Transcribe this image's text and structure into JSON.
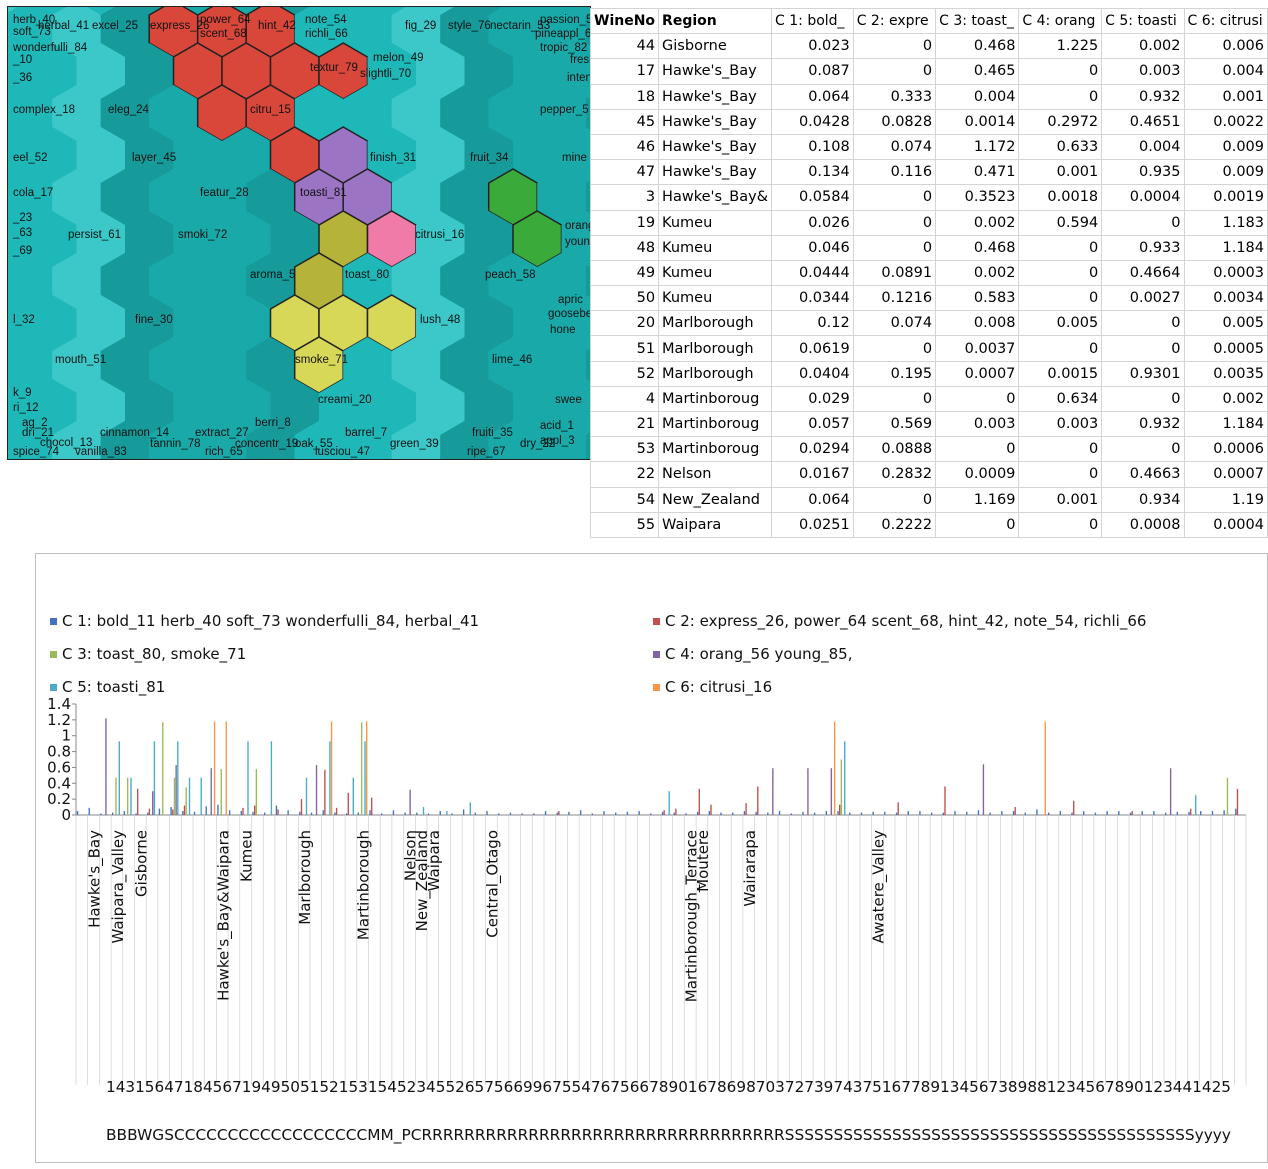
{
  "som": {
    "labels": [
      {
        "text": "herb_40",
        "hex": "herb"
      },
      {
        "text": "soft_73"
      },
      {
        "text": "wonderfulli_84"
      },
      {
        "text": "_10"
      },
      {
        "text": "_36"
      },
      {
        "text": "herbal_41"
      },
      {
        "text": "excel_25"
      },
      {
        "text": "express_26"
      },
      {
        "text": "power_64"
      },
      {
        "text": "scent_68"
      },
      {
        "text": "hint_42"
      },
      {
        "text": "note_54"
      },
      {
        "text": "richli_66"
      },
      {
        "text": "fig_29"
      },
      {
        "text": "style_76"
      },
      {
        "text": "nectarin_53"
      },
      {
        "text": "passion_5"
      },
      {
        "text": "pineappl_6"
      },
      {
        "text": "tropic_82"
      },
      {
        "text": "fresh"
      },
      {
        "text": "intens"
      },
      {
        "text": "melon_49"
      },
      {
        "text": "slightli_70"
      },
      {
        "text": "textur_79"
      },
      {
        "text": "complex_18"
      },
      {
        "text": "eleg_24"
      },
      {
        "text": "citru_15"
      },
      {
        "text": "pepper_5"
      },
      {
        "text": "eel_52"
      },
      {
        "text": "layer_45"
      },
      {
        "text": "finish_31"
      },
      {
        "text": "fruit_34"
      },
      {
        "text": "mine"
      },
      {
        "text": "cola_17"
      },
      {
        "text": "featur_28"
      },
      {
        "text": "toasti_81"
      },
      {
        "text": "_23"
      },
      {
        "text": "_63"
      },
      {
        "text": "_69"
      },
      {
        "text": "persist_61"
      },
      {
        "text": "smoki_72"
      },
      {
        "text": "citrusi_16"
      },
      {
        "text": "orang"
      },
      {
        "text": "youn"
      },
      {
        "text": "aroma_5"
      },
      {
        "text": "toast_80"
      },
      {
        "text": "peach_58"
      },
      {
        "text": "apric"
      },
      {
        "text": "goosebe"
      },
      {
        "text": "hone"
      },
      {
        "text": "l_32"
      },
      {
        "text": "fine_30"
      },
      {
        "text": "lush_48"
      },
      {
        "text": "mouth_51"
      },
      {
        "text": "smoke_71"
      },
      {
        "text": "lime_46"
      },
      {
        "text": "creami_20"
      },
      {
        "text": "k_9"
      },
      {
        "text": "ri_12"
      },
      {
        "text": "ag_2"
      },
      {
        "text": "swee"
      },
      {
        "text": "dri_21"
      },
      {
        "text": "chocol_13"
      },
      {
        "text": "cinnamon_14"
      },
      {
        "text": "extract_27"
      },
      {
        "text": "berri_8"
      },
      {
        "text": "spice_74"
      },
      {
        "text": "vanilla_83"
      },
      {
        "text": "tannin_78"
      },
      {
        "text": "rich_65"
      },
      {
        "text": "concentr_19"
      },
      {
        "text": "oak_55"
      },
      {
        "text": "barrel_7"
      },
      {
        "text": "lusciou_47"
      },
      {
        "text": "green_39"
      },
      {
        "text": "fruiti_35"
      },
      {
        "text": "ripe_67"
      },
      {
        "text": "dry_22"
      },
      {
        "text": "acid_1"
      },
      {
        "text": "appl_3"
      }
    ],
    "colors": {
      "base": "#1fb8b8",
      "dark": "#169a9a",
      "mid": "#1aa9a9",
      "light": "#3cc8c8",
      "red": "#d9473b",
      "purple": "#9b74c4",
      "olive": "#b5b33a",
      "pink": "#f07aa8",
      "green": "#3aaa3a",
      "yellow": "#d8d858"
    }
  },
  "table": {
    "headers": [
      "WineNo",
      "Region",
      "C 1: bold_",
      "C 2: expre",
      "C 3: toast_",
      "C 4: orang",
      "C 5: toasti",
      "C 6: citrusi"
    ],
    "rows": [
      [
        "44",
        "Gisborne",
        "0.023",
        "0",
        "0.468",
        "1.225",
        "0.002",
        "0.006"
      ],
      [
        "17",
        "Hawke's_Bay",
        "0.087",
        "0",
        "0.465",
        "0",
        "0.003",
        "0.004"
      ],
      [
        "18",
        "Hawke's_Bay",
        "0.064",
        "0.333",
        "0.004",
        "0",
        "0.932",
        "0.001"
      ],
      [
        "45",
        "Hawke's_Bay",
        "0.0428",
        "0.0828",
        "0.0014",
        "0.2972",
        "0.4651",
        "0.0022"
      ],
      [
        "46",
        "Hawke's_Bay",
        "0.108",
        "0.074",
        "1.172",
        "0.633",
        "0.004",
        "0.009"
      ],
      [
        "47",
        "Hawke's_Bay",
        "0.134",
        "0.116",
        "0.471",
        "0.001",
        "0.935",
        "0.009"
      ],
      [
        "3",
        "Hawke's_Bay&",
        "0.0584",
        "0",
        "0.3523",
        "0.0018",
        "0.0004",
        "0.0019"
      ],
      [
        "19",
        "Kumeu",
        "0.026",
        "0",
        "0.002",
        "0.594",
        "0",
        "1.183"
      ],
      [
        "48",
        "Kumeu",
        "0.046",
        "0",
        "0.468",
        "0",
        "0.933",
        "1.184"
      ],
      [
        "49",
        "Kumeu",
        "0.0444",
        "0.0891",
        "0.002",
        "0",
        "0.4664",
        "0.0003"
      ],
      [
        "50",
        "Kumeu",
        "0.0344",
        "0.1216",
        "0.583",
        "0",
        "0.0027",
        "0.0034"
      ],
      [
        "20",
        "Marlborough",
        "0.12",
        "0.074",
        "0.008",
        "0.005",
        "0",
        "0.005"
      ],
      [
        "51",
        "Marlborough",
        "0.0619",
        "0",
        "0.0037",
        "0",
        "0",
        "0.0005"
      ],
      [
        "52",
        "Marlborough",
        "0.0404",
        "0.195",
        "0.0007",
        "0.0015",
        "0.9301",
        "0.0035"
      ],
      [
        "4",
        "Martinboroug",
        "0.029",
        "0",
        "0",
        "0.634",
        "0",
        "0.002"
      ],
      [
        "21",
        "Martinboroug",
        "0.057",
        "0.569",
        "0.003",
        "0.003",
        "0.932",
        "1.184"
      ],
      [
        "53",
        "Martinboroug",
        "0.0294",
        "0.0888",
        "0",
        "0",
        "0",
        "0.0006"
      ],
      [
        "22",
        "Nelson",
        "0.0167",
        "0.2832",
        "0.0009",
        "0",
        "0.4663",
        "0.0007"
      ],
      [
        "54",
        "New_Zealand",
        "0.064",
        "0",
        "1.169",
        "0.001",
        "0.934",
        "1.19"
      ],
      [
        "55",
        "Waipara",
        "0.0251",
        "0.2222",
        "0",
        "0",
        "0.0008",
        "0.0004"
      ]
    ]
  },
  "chart_data": {
    "type": "bar",
    "ylim": [
      0,
      1.4
    ],
    "yticks": [
      "0",
      "0.2",
      "0.4",
      "0.6",
      "0.8",
      "1",
      "1.2",
      "1.4"
    ],
    "legend": [
      {
        "name": "C 1: bold_11  herb_40  soft_73  wonderfulli_84, herbal_41",
        "color": "#4472c4"
      },
      {
        "name": "C 2: express_26, power_64  scent_68, hint_42, note_54, richli_66",
        "color": "#c0504d"
      },
      {
        "name": "C 3: toast_80, smoke_71",
        "color": "#9bbb59"
      },
      {
        "name": "C 4: orang_56  young_85,",
        "color": "#8064a2"
      },
      {
        "name": "C 5: toasti_81",
        "color": "#4bacc6"
      },
      {
        "name": "C 6: citrusi_16",
        "color": "#f79646"
      }
    ],
    "region_labels": [
      {
        "text": "Hawke's_Bay",
        "i": 1
      },
      {
        "text": "Waipara_Valley",
        "i": 3
      },
      {
        "text": "Gisborne",
        "i": 5
      },
      {
        "text": "Hawke's_Bay&Waipara",
        "i": 12
      },
      {
        "text": "Kumeu",
        "i": 14
      },
      {
        "text": "Marlborough",
        "i": 19
      },
      {
        "text": "Martinborough",
        "i": 24
      },
      {
        "text": "Nelson",
        "i": 28
      },
      {
        "text": "New_Zealand",
        "i": 29
      },
      {
        "text": "Waipara",
        "i": 30
      },
      {
        "text": "Central_Otago",
        "i": 35
      },
      {
        "text": "Martinborough_Terrace",
        "i": 52
      },
      {
        "text": "Moutere",
        "i": 53
      },
      {
        "text": "Wairarapa",
        "i": 57
      },
      {
        "text": "Awatere_Valley",
        "i": 68
      }
    ],
    "wine_no_row": "14315647184567194950515215315452345526575669967554767566789016786987037273974375167789134567389881234567890123441425",
    "code_row": "BBBWGSCCCCCCCCCCCCCCCCCCMM_PCRRRRRRRRRRRRRRRRRRRRRRRRRRRRRRRRRRSSSSSSSSSSSSSSSSSSSSSSSSSSSSSSSSSSSSSSSSSSyyyy",
    "categories_count": 100,
    "series": [
      {
        "name": "C 1",
        "values": [
          0.05,
          0.09,
          0.02,
          0.03,
          0.05,
          0.02,
          0.03,
          0.08,
          0.1,
          0.05,
          0.04,
          0.11,
          0.13,
          0.06,
          0.05,
          0.04,
          0.03,
          0.12,
          0.06,
          0.04,
          0.03,
          0.06,
          0.03,
          0.02,
          0.03,
          0.06,
          0.02,
          0.06,
          0.03,
          0.03,
          0.02,
          0.05,
          0.02,
          0.07,
          0.03,
          0.05,
          0.02,
          0.03,
          0.02,
          0.02,
          0.05,
          0.03,
          0.04,
          0.06,
          0.02,
          0.05,
          0.03,
          0.04,
          0.05,
          0.02,
          0.04,
          0.03,
          0.02,
          0.04,
          0.05,
          0.03,
          0.03,
          0.05,
          0.04,
          0.03,
          0.05,
          0.02,
          0.04,
          0.03,
          0.05,
          0.05,
          0.03,
          0.03,
          0.04,
          0.04,
          0.03,
          0.05,
          0.05,
          0.03,
          0.03,
          0.05,
          0.04,
          0.06,
          0.03,
          0.05,
          0.05,
          0.03,
          0.07,
          0.03,
          0.05,
          0.03,
          0.05,
          0.03,
          0.05,
          0.05,
          0.03,
          0.05,
          0.05,
          0.03,
          0.04,
          0.04,
          0.05,
          0.05,
          0.06,
          0.08
        ]
      },
      {
        "name": "C 2",
        "values": [
          0,
          0,
          0,
          0,
          0,
          0.33,
          0.08,
          0,
          0.07,
          0.12,
          0,
          0,
          0,
          0,
          0.09,
          0.12,
          0,
          0.07,
          0,
          0.2,
          0,
          0.57,
          0.09,
          0.28,
          0,
          0.22,
          0,
          0,
          0,
          0,
          0,
          0,
          0,
          0,
          0,
          0,
          0,
          0,
          0,
          0,
          0,
          0.05,
          0,
          0,
          0,
          0,
          0,
          0,
          0,
          0,
          0.06,
          0.08,
          0,
          0.33,
          0.13,
          0,
          0,
          0.15,
          0.36,
          0,
          0,
          0,
          0,
          0,
          0,
          0.13,
          0,
          0,
          0,
          0,
          0.16,
          0,
          0,
          0,
          0.36,
          0,
          0,
          0,
          0,
          0,
          0.1,
          0,
          0,
          0,
          0,
          0.18,
          0,
          0,
          0,
          0,
          0.05,
          0,
          0,
          0,
          0,
          0.08,
          0,
          0,
          0,
          0.33
        ]
      },
      {
        "name": "C 3",
        "values": [
          0,
          0,
          0,
          0.47,
          0.47,
          0,
          0,
          1.17,
          0.47,
          0.35,
          0,
          0,
          0.58,
          0,
          0,
          0.58,
          0,
          0,
          0,
          0,
          0,
          0,
          0,
          0,
          1.17,
          0,
          0,
          0,
          0,
          0,
          0,
          0,
          0,
          0,
          0,
          0,
          0,
          0,
          0,
          0,
          0,
          0,
          0,
          0,
          0,
          0,
          0,
          0,
          0,
          0,
          0,
          0,
          0,
          0,
          0,
          0,
          0,
          0,
          0,
          0,
          0,
          0,
          0,
          0,
          0,
          0.7,
          0,
          0,
          0,
          0,
          0,
          0,
          0,
          0,
          0,
          0,
          0,
          0,
          0,
          0,
          0,
          0,
          0,
          0,
          0,
          0,
          0,
          0,
          0,
          0,
          0,
          0,
          0,
          0,
          0,
          0,
          0,
          0,
          0.47,
          0
        ]
      },
      {
        "name": "C 4",
        "values": [
          0,
          0,
          1.22,
          0,
          0,
          0,
          0.3,
          0,
          0.63,
          0,
          0,
          0.59,
          0,
          0,
          0,
          0,
          0,
          0,
          0,
          0,
          0.63,
          0,
          0,
          0,
          0,
          0,
          0,
          0,
          0.32,
          0,
          0,
          0,
          0,
          0,
          0,
          0,
          0,
          0,
          0,
          0,
          0,
          0,
          0,
          0,
          0,
          0,
          0,
          0,
          0,
          0,
          0,
          0,
          0,
          0,
          0,
          0,
          0,
          0,
          0,
          0.59,
          0,
          0,
          0.59,
          0,
          0.59,
          0,
          0,
          0,
          0,
          0,
          0,
          0,
          0,
          0,
          0,
          0,
          0,
          0.64,
          0,
          0,
          0,
          0,
          0,
          0,
          0,
          0,
          0,
          0,
          0,
          0,
          0,
          0,
          0,
          0.59,
          0,
          0,
          0,
          0,
          0,
          0
        ]
      },
      {
        "name": "C 5",
        "values": [
          0,
          0,
          0,
          0.93,
          0.47,
          0,
          0.93,
          0,
          0.93,
          0.47,
          0.47,
          0,
          0,
          0,
          0.93,
          0,
          0.93,
          0,
          0,
          0.47,
          0,
          0.93,
          0,
          0.47,
          0.93,
          0,
          0,
          0,
          0,
          0.1,
          0,
          0.05,
          0,
          0.16,
          0,
          0,
          0,
          0,
          0,
          0,
          0,
          0,
          0,
          0,
          0,
          0,
          0,
          0,
          0,
          0,
          0.3,
          0,
          0,
          0,
          0,
          0,
          0,
          0,
          0,
          0,
          0,
          0,
          0,
          0,
          0,
          0.93,
          0,
          0,
          0,
          0,
          0,
          0,
          0,
          0,
          0,
          0,
          0,
          0,
          0,
          0,
          0,
          0,
          0,
          0,
          0,
          0,
          0,
          0,
          0,
          0,
          0,
          0,
          0,
          0,
          0,
          0.25,
          0,
          0,
          0,
          0
        ]
      },
      {
        "name": "C 6",
        "values": [
          0,
          0,
          0,
          0,
          0,
          0,
          0,
          0,
          0,
          0,
          0,
          1.18,
          1.18,
          0,
          0,
          0,
          0,
          0,
          0,
          0,
          0,
          1.18,
          0,
          0,
          1.18,
          0,
          0,
          0,
          0,
          0,
          0,
          0,
          0,
          0,
          0,
          0,
          0,
          0,
          0,
          0,
          0,
          0,
          0,
          0,
          0,
          0,
          0,
          0,
          0,
          0,
          0,
          0,
          0,
          0,
          0,
          0,
          0,
          0,
          0,
          0,
          0,
          0,
          0,
          0,
          1.18,
          0,
          0,
          0,
          0,
          0,
          0,
          0,
          0,
          0,
          0,
          0,
          0,
          0,
          0,
          0,
          0,
          0,
          1.18,
          0,
          0,
          0,
          0,
          0,
          0,
          0,
          0,
          0,
          0,
          0,
          0,
          0,
          0,
          0,
          0,
          0
        ]
      }
    ]
  }
}
